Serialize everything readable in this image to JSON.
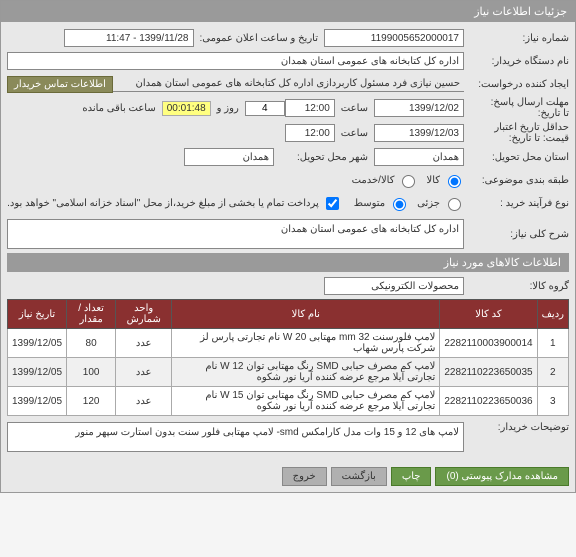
{
  "titlebar": "جزئیات اطلاعات نیاز",
  "fields": {
    "need_no_label": "شماره نیاز:",
    "need_no": "1199005652000017",
    "announce_time_label": "تاریخ و ساعت اعلان عمومی:",
    "announce_time": "1399/11/28 - 11:47",
    "buyer_org_label": "نام دستگاه خریدار:",
    "buyer_org": "اداره کل کتابخانه های عمومی استان همدان",
    "creator_label": "ایجاد کننده درخواست:",
    "creator": "حسین نیازی فرد مسئول کاربردازی اداره کل کتابخانه های عمومی استان همدان",
    "buyer_contact_btn": "اطلاعات تماس خریدار",
    "deadline_label": "مهلت ارسال پاسخ:",
    "deadline_to_label": "تا تاریخ:",
    "deadline_date": "1399/12/02",
    "hour_l": "ساعت",
    "deadline_hour": "12:00",
    "day_l": "روز و",
    "days_left": "4",
    "timer": "00:01:48",
    "remain_l": "ساعت باقی مانده",
    "price_valid_label": "حداقل تاریخ اعتبار قیمت: تا تاریخ:",
    "price_valid_date": "1399/12/03",
    "price_valid_hour": "12:00",
    "delivery_prov_label": "استان محل تحویل:",
    "delivery_prov": "همدان",
    "delivery_city_label": "شهر محل تحویل:",
    "delivery_city": "همدان",
    "budget_class_label": "طبقه بندی موضوعی:",
    "goods_l": "کالا",
    "service_l": "کالا/خدمت",
    "process_type_label": "نوع فرآیند خرید :",
    "low_l": "جزئی",
    "mid_l": "متوسط",
    "pay_note": "پرداخت تمام یا بخشی از مبلغ خرید،از محل \"اسناد خزانه اسلامی\" خواهد بود.",
    "need_desc_label": "شرح کلی نیاز:",
    "need_desc": "اداره کل کتابخانه های عمومی استان همدان"
  },
  "items_section": "اطلاعات کالاهای مورد نیاز",
  "group_label": "گروه کالا:",
  "group_value": "محصولات الکترونیکی",
  "table": {
    "headers": [
      "ردیف",
      "کد کالا",
      "نام کالا",
      "واحد شمارش",
      "تعداد / مقدار",
      "تاریخ نیاز"
    ],
    "rows": [
      [
        "1",
        "2282110003900014",
        "لامپ فلورسنت 32 mm مهتابی 20 W نام تجارتی پارس لز شرکت پارس شهاب",
        "عدد",
        "80",
        "1399/12/05"
      ],
      [
        "2",
        "2282110223650035",
        "لامپ کم مصرف حبابی SMD رنگ مهتابی توان 12 W نام تجارتی آیلا مرجع عرضه کننده آریا نور شکوه",
        "عدد",
        "100",
        "1399/12/05"
      ],
      [
        "3",
        "2282110223650036",
        "لامپ کم مصرف حبابی SMD رنگ مهتابی توان 15 W نام تجارتی آیلا مرجع عرضه کننده آریا نور شکوه",
        "عدد",
        "120",
        "1399/12/05"
      ]
    ]
  },
  "buyer_notes_label": "توضیحات خریدار:",
  "buyer_notes": "لامپ های 12 و 15 وات مدل کارامکس smd- لامپ مهتابی فلور سنت بدون استارت سپهر منور",
  "footer": {
    "attach": "مشاهده مدارک پیوستی (0)",
    "print": "چاپ",
    "back": "بازگشت",
    "exit": "خروج"
  }
}
